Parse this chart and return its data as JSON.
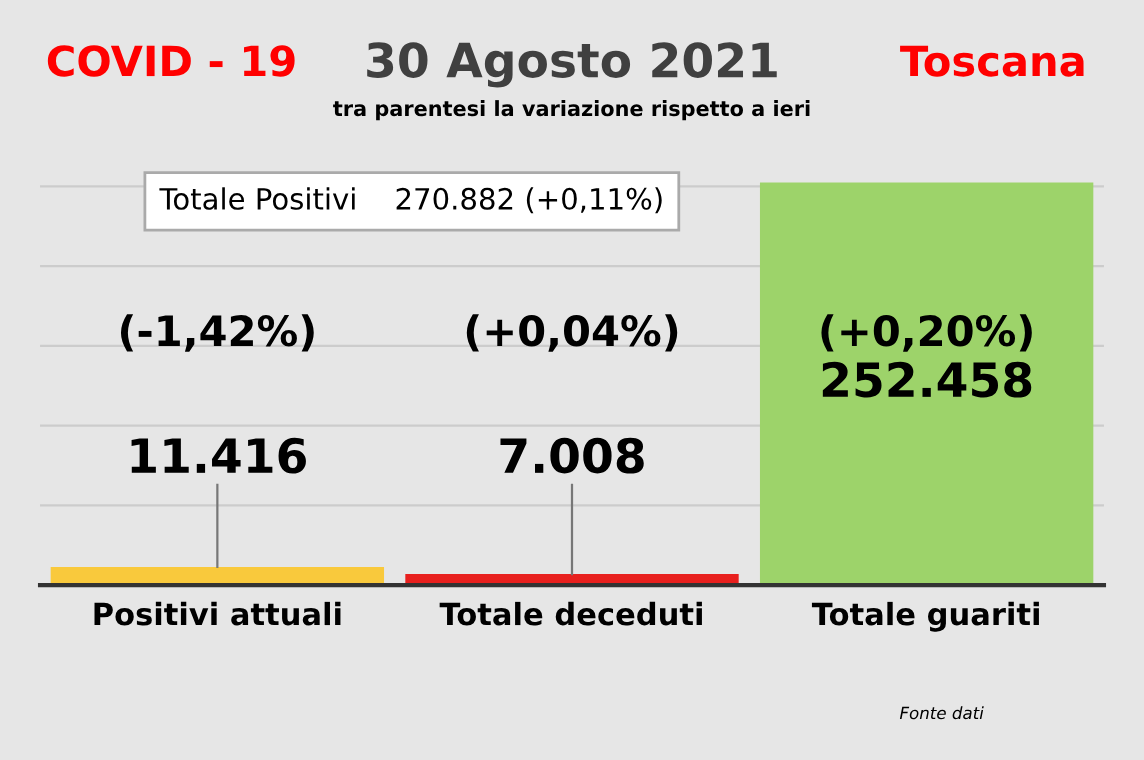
{
  "chart_data": {
    "type": "bar",
    "title": "30 Agosto 2021",
    "subtitle": "tra parentesi la variazione rispetto a ieri",
    "categories": [
      "Positivi attuali",
      "Totale deceduti",
      "Totale guariti"
    ],
    "values": [
      11416,
      7008,
      252458
    ],
    "colors": [
      "#f9c93c",
      "#e8201e",
      "#9dd36a"
    ],
    "value_labels": [
      "11.416",
      "7.008",
      "252.458"
    ],
    "ylim": [
      0,
      262000
    ],
    "yticks": [
      {
        "value": 0,
        "label": null
      },
      {
        "value": 50000,
        "label": null
      },
      {
        "value": 100000,
        "label": null
      },
      {
        "value": 150000,
        "label": null
      },
      {
        "value": 200000,
        "label": null
      },
      {
        "value": 250000,
        "label": null
      }
    ],
    "tick_labels": "x",
    "grid": "y",
    "annotations": [
      "COVID - 19",
      "Toscana",
      "Totale Positivi    270.882 (+0,11%)",
      "(-1,42%)",
      "(+0,04%)",
      "(+0,20%)",
      "Fonte dati"
    ]
  }
}
